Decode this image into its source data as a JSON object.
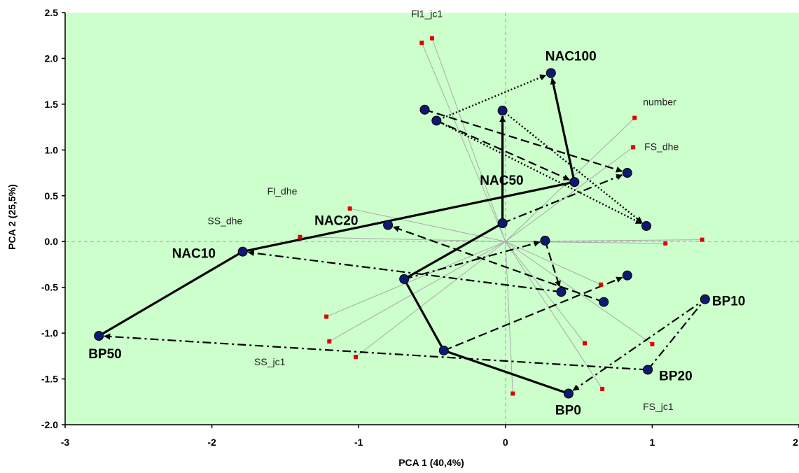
{
  "chart_data": {
    "type": "scatter",
    "title": "",
    "xlabel": "PCA 1 (40,4%)",
    "ylabel": "PCA 2 (25,5%)",
    "xlim": [
      -3,
      2
    ],
    "ylim": [
      -2,
      2.5
    ],
    "x_ticks": [
      -3,
      -2,
      -1,
      0,
      1,
      2
    ],
    "y_ticks": [
      -2.0,
      -1.5,
      -1.0,
      -0.5,
      0.0,
      0.5,
      1.0,
      1.5,
      2.0,
      2.5
    ],
    "x_tick_labels": [
      "-3",
      "-2",
      "-1",
      "0",
      "1",
      "2"
    ],
    "y_tick_labels": [
      "-2.0",
      "-1.5",
      "-1.0",
      "-0.5",
      "0.0",
      "0.5",
      "1.0",
      "1.5",
      "2.0",
      "2.5"
    ],
    "background_color": "#ccffcc",
    "observation_color": "#0d1a70",
    "variable_color": "#e00000",
    "loading_line_color": "#aaaaaa",
    "observations": [
      {
        "label": "NAC100",
        "x": 0.31,
        "y": 1.84
      },
      {
        "label": "NAC50",
        "x": 0.47,
        "y": 0.65
      },
      {
        "label": "NAC20",
        "x": -0.8,
        "y": 0.18
      },
      {
        "label": "NAC10",
        "x": -1.79,
        "y": -0.11
      },
      {
        "label": "BP50",
        "x": -2.77,
        "y": -1.03
      },
      {
        "label": "BP10",
        "x": 1.36,
        "y": -0.63
      },
      {
        "label": "BP20",
        "x": 0.97,
        "y": -1.4
      },
      {
        "label": "BP0",
        "x": 0.43,
        "y": -1.66
      },
      {
        "label": "",
        "x": -0.55,
        "y": 1.44
      },
      {
        "label": "",
        "x": -0.47,
        "y": 1.32
      },
      {
        "label": "",
        "x": -0.02,
        "y": 1.43
      },
      {
        "label": "",
        "x": 0.83,
        "y": 0.75
      },
      {
        "label": "",
        "x": 0.96,
        "y": 0.17
      },
      {
        "label": "",
        "x": -0.02,
        "y": 0.2
      },
      {
        "label": "",
        "x": 0.27,
        "y": 0.01
      },
      {
        "label": "",
        "x": -0.69,
        "y": -0.41
      },
      {
        "label": "",
        "x": 0.38,
        "y": -0.55
      },
      {
        "label": "",
        "x": 0.67,
        "y": -0.66
      },
      {
        "label": "",
        "x": 0.83,
        "y": -0.37
      },
      {
        "label": "",
        "x": -0.42,
        "y": -1.19
      }
    ],
    "variables": [
      {
        "label": "Fl1_jc1",
        "x": -0.5,
        "y": 2.22
      },
      {
        "label": "",
        "x": -0.57,
        "y": 2.17
      },
      {
        "label": "number",
        "x": 0.88,
        "y": 1.35
      },
      {
        "label": "FS_dhe",
        "x": 0.87,
        "y": 1.03
      },
      {
        "label": "Fl_dhe",
        "x": -1.06,
        "y": 0.36
      },
      {
        "label": "SS_dhe",
        "x": -1.4,
        "y": 0.05
      },
      {
        "label": "",
        "x": 1.09,
        "y": -0.02
      },
      {
        "label": "",
        "x": 1.34,
        "y": 0.02
      },
      {
        "label": "",
        "x": 0.65,
        "y": -0.47
      },
      {
        "label": "",
        "x": -1.22,
        "y": -0.82
      },
      {
        "label": "",
        "x": -1.2,
        "y": -1.09
      },
      {
        "label": "SS_jc1",
        "x": -1.02,
        "y": -1.26
      },
      {
        "label": "",
        "x": 0.54,
        "y": -1.11
      },
      {
        "label": "",
        "x": 1.0,
        "y": -1.12
      },
      {
        "label": "FS_jc1",
        "x": 0.66,
        "y": -1.61
      },
      {
        "label": "",
        "x": 0.05,
        "y": -1.66
      }
    ],
    "trajectories": [
      {
        "style": "solid",
        "points": [
          [
            0.43,
            -1.66
          ],
          [
            -0.42,
            -1.19
          ],
          [
            -0.69,
            -0.41
          ],
          [
            -0.02,
            0.2
          ],
          [
            -0.02,
            1.43
          ]
        ]
      },
      {
        "style": "solid",
        "points": [
          [
            -2.77,
            -1.03
          ],
          [
            -1.79,
            -0.11
          ],
          [
            0.47,
            0.65
          ],
          [
            0.31,
            1.84
          ]
        ]
      },
      {
        "style": "dashed",
        "points": [
          [
            -0.55,
            1.44
          ],
          [
            0.83,
            0.75
          ]
        ]
      },
      {
        "style": "dashed",
        "points": [
          [
            -0.47,
            1.32
          ],
          [
            0.47,
            0.65
          ]
        ]
      },
      {
        "style": "dashed",
        "points": [
          [
            0.67,
            -0.66
          ],
          [
            -0.8,
            0.18
          ]
        ]
      },
      {
        "style": "dashed",
        "points": [
          [
            0.27,
            0.01
          ],
          [
            0.38,
            -0.55
          ]
        ]
      },
      {
        "style": "dashed",
        "points": [
          [
            -0.42,
            -1.19
          ],
          [
            0.83,
            -0.37
          ]
        ]
      },
      {
        "style": "dotted",
        "points": [
          [
            -0.47,
            1.32
          ],
          [
            0.31,
            1.84
          ]
        ]
      },
      {
        "style": "dotted",
        "points": [
          [
            -0.47,
            1.32
          ],
          [
            0.96,
            0.17
          ]
        ]
      },
      {
        "style": "dotted",
        "points": [
          [
            -0.02,
            1.43
          ],
          [
            0.96,
            0.17
          ]
        ]
      },
      {
        "style": "dashdot",
        "points": [
          [
            0.38,
            -0.55
          ],
          [
            -1.79,
            -0.11
          ]
        ]
      },
      {
        "style": "dashdot",
        "points": [
          [
            0.97,
            -1.4
          ],
          [
            -2.77,
            -1.03
          ]
        ]
      },
      {
        "style": "dashdot",
        "points": [
          [
            -0.69,
            -0.41
          ],
          [
            0.27,
            0.01
          ]
        ]
      },
      {
        "style": "dashdot",
        "points": [
          [
            -0.02,
            0.2
          ],
          [
            0.83,
            0.75
          ]
        ]
      },
      {
        "style": "dashdot",
        "points": [
          [
            0.97,
            -1.4
          ],
          [
            1.36,
            -0.63
          ],
          [
            0.43,
            -1.66
          ]
        ]
      }
    ]
  }
}
